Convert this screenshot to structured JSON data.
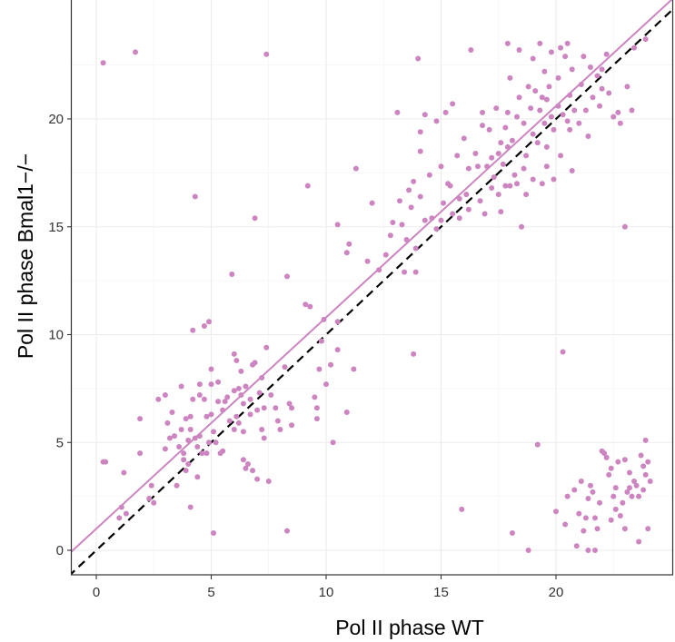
{
  "chart_data": {
    "type": "scatter",
    "title": "",
    "xlabel": "Pol II phase WT",
    "ylabel": "Pol II phase Bmal1−/−",
    "xlim": [
      -1.2,
      25.3
    ],
    "ylim": [
      -1.2,
      24.8
    ],
    "xticks": [
      0,
      5,
      10,
      15,
      20
    ],
    "yticks": [
      0,
      5,
      10,
      15,
      20
    ],
    "xtick_labels": [
      "0",
      "5",
      "10",
      "15",
      "20"
    ],
    "ytick_labels": [
      "0",
      "5",
      "10",
      "15",
      "20"
    ],
    "grid": true,
    "legend": "none",
    "colors": {
      "points": "#cc85c0",
      "fit_line": "#cc85c0",
      "identity_line": "#000000",
      "panel_border": "#333333",
      "grid_major": "#ebebeb",
      "grid_minor": "#f5f5f5"
    },
    "reference_lines": [
      {
        "kind": "identity",
        "style": "dashed",
        "slope": 1.0,
        "intercept": 0.0
      },
      {
        "kind": "fit",
        "style": "solid",
        "slope": 0.98,
        "intercept": 1.0
      }
    ],
    "points": [
      [
        0.3,
        22.6
      ],
      [
        1.7,
        23.1
      ],
      [
        7.4,
        23.0
      ],
      [
        0.4,
        4.1
      ],
      [
        0.3,
        4.1
      ],
      [
        1.1,
        2.0
      ],
      [
        1.0,
        1.5
      ],
      [
        1.3,
        1.7
      ],
      [
        1.2,
        3.6
      ],
      [
        1.9,
        4.5
      ],
      [
        1.9,
        6.1
      ],
      [
        2.3,
        2.4
      ],
      [
        2.4,
        3.0
      ],
      [
        2.5,
        2.2
      ],
      [
        2.7,
        7.0
      ],
      [
        3.0,
        7.2
      ],
      [
        3.0,
        4.7
      ],
      [
        3.1,
        5.9
      ],
      [
        3.2,
        5.2
      ],
      [
        3.3,
        6.4
      ],
      [
        3.4,
        5.3
      ],
      [
        3.5,
        3.0
      ],
      [
        3.6,
        4.8
      ],
      [
        3.7,
        7.6
      ],
      [
        3.7,
        5.6
      ],
      [
        3.8,
        4.5
      ],
      [
        3.8,
        4.2
      ],
      [
        3.9,
        6.1
      ],
      [
        3.9,
        3.7
      ],
      [
        4.0,
        5.1
      ],
      [
        4.0,
        4.0
      ],
      [
        4.1,
        2.0
      ],
      [
        4.1,
        6.2
      ],
      [
        4.1,
        5.6
      ],
      [
        4.2,
        10.2
      ],
      [
        4.2,
        7.0
      ],
      [
        4.3,
        16.4
      ],
      [
        4.3,
        5.2
      ],
      [
        4.4,
        3.4
      ],
      [
        4.4,
        4.8
      ],
      [
        4.5,
        7.7
      ],
      [
        4.5,
        7.2
      ],
      [
        4.5,
        5.3
      ],
      [
        4.6,
        4.5
      ],
      [
        4.7,
        10.4
      ],
      [
        4.7,
        7.0
      ],
      [
        4.8,
        6.2
      ],
      [
        4.8,
        4.5
      ],
      [
        4.9,
        10.6
      ],
      [
        4.9,
        5.0
      ],
      [
        5.0,
        8.4
      ],
      [
        5.0,
        7.7
      ],
      [
        5.0,
        6.3
      ],
      [
        5.1,
        5.5
      ],
      [
        5.1,
        0.8
      ],
      [
        5.2,
        5.0
      ],
      [
        5.3,
        6.9
      ],
      [
        5.3,
        7.8
      ],
      [
        5.4,
        4.5
      ],
      [
        5.5,
        4.6
      ],
      [
        5.5,
        6.5
      ],
      [
        5.6,
        6.9
      ],
      [
        5.7,
        7.1
      ],
      [
        5.8,
        6.0
      ],
      [
        5.9,
        12.8
      ],
      [
        6.0,
        7.4
      ],
      [
        6.0,
        5.6
      ],
      [
        6.0,
        9.1
      ],
      [
        6.1,
        8.8
      ],
      [
        6.1,
        6.2
      ],
      [
        6.2,
        7.5
      ],
      [
        6.2,
        5.9
      ],
      [
        6.3,
        7.2
      ],
      [
        6.3,
        8.3
      ],
      [
        6.4,
        4.2
      ],
      [
        6.4,
        6.8
      ],
      [
        6.4,
        5.5
      ],
      [
        6.5,
        3.8
      ],
      [
        6.5,
        7.6
      ],
      [
        6.6,
        4.0
      ],
      [
        6.7,
        6.3
      ],
      [
        6.7,
        7.0
      ],
      [
        6.8,
        8.6
      ],
      [
        6.8,
        3.7
      ],
      [
        6.9,
        8.7
      ],
      [
        6.9,
        15.4
      ],
      [
        7.0,
        6.5
      ],
      [
        7.0,
        3.3
      ],
      [
        7.1,
        7.3
      ],
      [
        7.2,
        5.6
      ],
      [
        7.2,
        8.0
      ],
      [
        7.3,
        6.6
      ],
      [
        7.3,
        5.2
      ],
      [
        7.4,
        9.4
      ],
      [
        7.5,
        3.2
      ],
      [
        7.6,
        7.2
      ],
      [
        7.8,
        6.6
      ],
      [
        7.9,
        6.0
      ],
      [
        8.0,
        5.6
      ],
      [
        8.2,
        8.5
      ],
      [
        8.3,
        0.9
      ],
      [
        8.3,
        12.7
      ],
      [
        8.4,
        6.8
      ],
      [
        8.5,
        6.6
      ],
      [
        8.5,
        5.8
      ],
      [
        9.1,
        11.4
      ],
      [
        9.2,
        16.9
      ],
      [
        9.3,
        11.3
      ],
      [
        9.5,
        7.1
      ],
      [
        9.6,
        6.6
      ],
      [
        9.6,
        6.1
      ],
      [
        9.7,
        8.4
      ],
      [
        9.8,
        9.7
      ],
      [
        9.9,
        10.7
      ],
      [
        10.0,
        7.7
      ],
      [
        10.2,
        8.6
      ],
      [
        10.3,
        5.0
      ],
      [
        10.5,
        10.6
      ],
      [
        10.5,
        15.1
      ],
      [
        10.5,
        9.3
      ],
      [
        10.9,
        6.4
      ],
      [
        10.9,
        13.8
      ],
      [
        11.0,
        14.2
      ],
      [
        11.2,
        8.4
      ],
      [
        11.3,
        17.7
      ],
      [
        11.8,
        13.4
      ],
      [
        12.0,
        16.1
      ],
      [
        12.3,
        13.0
      ],
      [
        12.6,
        13.7
      ],
      [
        12.8,
        14.6
      ],
      [
        13.1,
        20.3
      ],
      [
        13.2,
        16.2
      ],
      [
        13.3,
        15.1
      ],
      [
        13.4,
        12.9
      ],
      [
        13.5,
        14.4
      ],
      [
        13.6,
        16.7
      ],
      [
        13.7,
        15.9
      ],
      [
        13.8,
        17.1
      ],
      [
        13.8,
        9.1
      ],
      [
        13.9,
        12.9
      ],
      [
        13.9,
        14.0
      ],
      [
        14.0,
        22.8
      ],
      [
        14.1,
        19.4
      ],
      [
        14.1,
        16.4
      ],
      [
        14.1,
        18.5
      ],
      [
        14.3,
        20.2
      ],
      [
        14.3,
        15.3
      ],
      [
        14.5,
        17.4
      ],
      [
        14.8,
        14.9
      ],
      [
        14.8,
        19.9
      ],
      [
        15.0,
        17.8
      ],
      [
        15.0,
        15.3
      ],
      [
        15.1,
        16.1
      ],
      [
        15.2,
        20.3
      ],
      [
        15.3,
        17.0
      ],
      [
        15.4,
        16.9
      ],
      [
        15.5,
        15.6
      ],
      [
        15.5,
        20.7
      ],
      [
        15.7,
        18.3
      ],
      [
        15.8,
        16.3
      ],
      [
        15.8,
        15.4
      ],
      [
        15.9,
        1.9
      ],
      [
        16.0,
        19.1
      ],
      [
        16.1,
        16.5
      ],
      [
        16.2,
        17.7
      ],
      [
        16.2,
        15.8
      ],
      [
        16.3,
        23.2
      ],
      [
        16.5,
        18.4
      ],
      [
        16.6,
        17.8
      ],
      [
        16.7,
        16.2
      ],
      [
        16.8,
        19.7
      ],
      [
        16.8,
        20.3
      ],
      [
        16.9,
        15.6
      ],
      [
        17.0,
        17.8
      ],
      [
        17.1,
        19.5
      ],
      [
        17.2,
        16.8
      ],
      [
        17.2,
        18.2
      ],
      [
        17.3,
        17.3
      ],
      [
        17.4,
        20.5
      ],
      [
        17.5,
        18.4
      ],
      [
        17.5,
        16.5
      ],
      [
        17.6,
        18.9
      ],
      [
        17.6,
        15.7
      ],
      [
        17.7,
        17.9
      ],
      [
        17.8,
        16.9
      ],
      [
        17.8,
        19.6
      ],
      [
        17.9,
        18.7
      ],
      [
        17.9,
        20.3
      ],
      [
        17.9,
        23.5
      ],
      [
        18.0,
        21.9
      ],
      [
        18.0,
        16.9
      ],
      [
        18.1,
        19.0
      ],
      [
        18.1,
        0.8
      ],
      [
        18.2,
        17.4
      ],
      [
        18.3,
        17.0
      ],
      [
        18.3,
        20.1
      ],
      [
        18.4,
        21.0
      ],
      [
        18.4,
        23.2
      ],
      [
        18.5,
        15.0
      ],
      [
        18.6,
        17.7
      ],
      [
        18.6,
        19.8
      ],
      [
        18.7,
        16.5
      ],
      [
        18.7,
        18.3
      ],
      [
        18.8,
        21.5
      ],
      [
        18.8,
        0.0
      ],
      [
        18.9,
        20.5
      ],
      [
        19.0,
        22.8
      ],
      [
        19.0,
        17.2
      ],
      [
        19.0,
        19.3
      ],
      [
        19.1,
        21.3
      ],
      [
        19.2,
        18.9
      ],
      [
        19.2,
        4.9
      ],
      [
        19.3,
        20.4
      ],
      [
        19.3,
        23.5
      ],
      [
        19.4,
        21.0
      ],
      [
        19.4,
        17.0
      ],
      [
        19.5,
        19.8
      ],
      [
        19.5,
        22.2
      ],
      [
        19.6,
        18.7
      ],
      [
        19.6,
        20.9
      ],
      [
        19.7,
        21.5
      ],
      [
        19.8,
        23.1
      ],
      [
        19.8,
        20.1
      ],
      [
        19.9,
        19.5
      ],
      [
        19.9,
        17.2
      ],
      [
        20.0,
        1.8
      ],
      [
        20.1,
        21.9
      ],
      [
        20.1,
        20.6
      ],
      [
        20.2,
        23.3
      ],
      [
        20.2,
        18.3
      ],
      [
        20.3,
        9.2
      ],
      [
        20.3,
        20.2
      ],
      [
        20.4,
        1.2
      ],
      [
        20.4,
        22.9
      ],
      [
        20.5,
        23.5
      ],
      [
        20.5,
        19.9
      ],
      [
        20.5,
        2.5
      ],
      [
        20.6,
        21.1
      ],
      [
        20.7,
        17.6
      ],
      [
        20.7,
        22.3
      ],
      [
        20.8,
        20.4
      ],
      [
        20.8,
        2.8
      ],
      [
        20.9,
        0.2
      ],
      [
        21.0,
        1.7
      ],
      [
        21.0,
        19.8
      ],
      [
        21.1,
        21.6
      ],
      [
        21.1,
        3.2
      ],
      [
        21.2,
        22.9
      ],
      [
        21.2,
        0.9
      ],
      [
        21.3,
        1.5
      ],
      [
        21.3,
        20.4
      ],
      [
        21.4,
        2.4
      ],
      [
        21.4,
        19.2
      ],
      [
        21.4,
        0.0
      ],
      [
        21.5,
        22.4
      ],
      [
        21.5,
        3.0
      ],
      [
        21.6,
        2.7
      ],
      [
        21.6,
        21.0
      ],
      [
        21.7,
        1.5
      ],
      [
        21.7,
        0.0
      ],
      [
        21.8,
        22.0
      ],
      [
        21.8,
        1.0
      ],
      [
        21.9,
        20.6
      ],
      [
        21.9,
        2.2
      ],
      [
        22.0,
        4.6
      ],
      [
        22.0,
        21.4
      ],
      [
        22.1,
        4.5
      ],
      [
        22.2,
        23.0
      ],
      [
        22.2,
        4.3
      ],
      [
        22.3,
        3.5
      ],
      [
        22.3,
        21.2
      ],
      [
        22.4,
        1.4
      ],
      [
        22.4,
        3.8
      ],
      [
        22.5,
        2.5
      ],
      [
        22.5,
        20.1
      ],
      [
        22.6,
        1.9
      ],
      [
        22.6,
        2.9
      ],
      [
        22.7,
        20.3
      ],
      [
        22.7,
        4.1
      ],
      [
        22.8,
        1.6
      ],
      [
        22.8,
        19.8
      ],
      [
        22.9,
        2.2
      ],
      [
        23.0,
        15.0
      ],
      [
        23.0,
        4.2
      ],
      [
        23.0,
        1.0
      ],
      [
        23.1,
        2.7
      ],
      [
        23.1,
        21.5
      ],
      [
        23.2,
        2.9
      ],
      [
        23.2,
        3.6
      ],
      [
        23.3,
        2.5
      ],
      [
        23.3,
        20.4
      ],
      [
        23.4,
        3.2
      ],
      [
        23.4,
        23.3
      ],
      [
        23.5,
        3.0
      ],
      [
        23.6,
        2.5
      ],
      [
        23.6,
        0.4
      ],
      [
        23.7,
        4.4
      ],
      [
        23.8,
        3.9
      ],
      [
        23.8,
        2.8
      ],
      [
        23.9,
        3.5
      ],
      [
        23.9,
        5.1
      ],
      [
        24.0,
        1.0
      ],
      [
        24.0,
        4.1
      ],
      [
        24.1,
        3.2
      ],
      [
        23.9,
        23.7
      ],
      [
        22.0,
        22.3
      ],
      [
        20.6,
        19.5
      ],
      [
        19.6,
        17.8
      ],
      [
        14.6,
        15.4
      ],
      [
        12.9,
        15.2
      ]
    ]
  }
}
